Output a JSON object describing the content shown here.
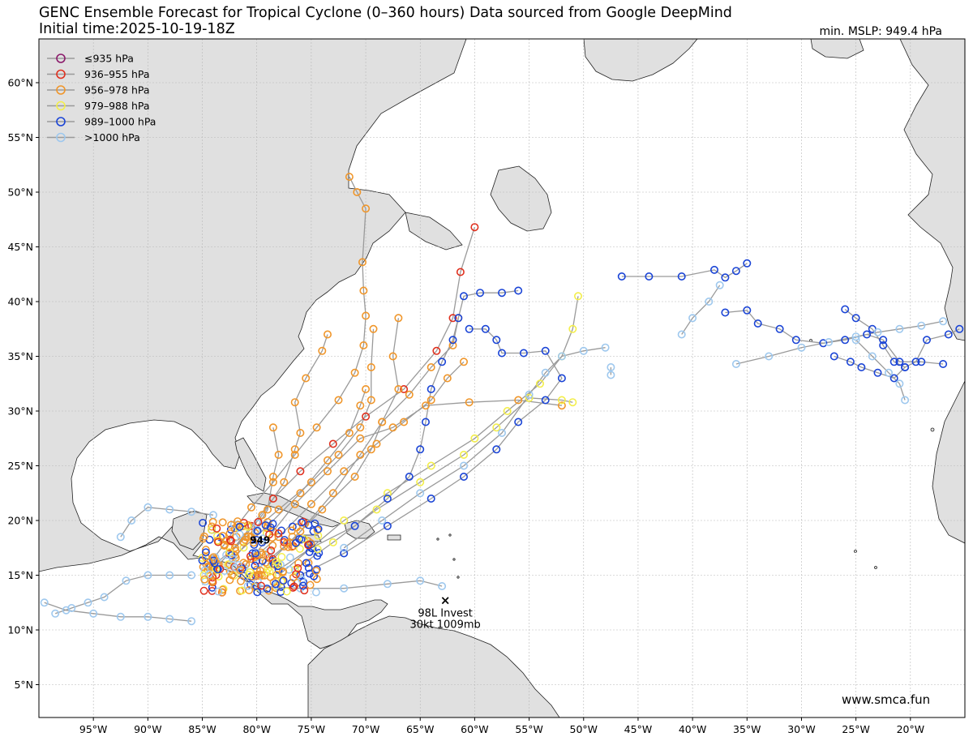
{
  "header": {
    "title": "GENC Ensemble Forecast for Tropical Cyclone (0–360 hours) Data sourced from Google DeepMind",
    "subtitle": "Initial time:2025-10-19-18Z",
    "min_mslp": "min. MSLP: 949.4 hPa"
  },
  "watermark": "www.smca.fun",
  "min_marker_label": "949",
  "invest": {
    "name": "98L Invest",
    "detail": "30kt 1009mb",
    "lon": -62.7,
    "lat": 12.7
  },
  "legend": [
    {
      "label": "≤935 hPa",
      "color": "#8b1a6b"
    },
    {
      "label": "936–955 hPa",
      "color": "#e0301e"
    },
    {
      "label": "956–978 hPa",
      "color": "#f0962a"
    },
    {
      "label": "979–988 hPa",
      "color": "#f3ee4a"
    },
    {
      "label": "989–1000 hPa",
      "color": "#1a44d6"
    },
    {
      "label": ">1000 hPa",
      "color": "#9ec8ee"
    }
  ],
  "chart_data": {
    "type": "scatter",
    "projection": "equirectangular",
    "xlim": [
      -100,
      -15
    ],
    "ylim": [
      2,
      64
    ],
    "x_ticks": [
      "95°W",
      "90°W",
      "85°W",
      "80°W",
      "75°W",
      "70°W",
      "65°W",
      "60°W",
      "55°W",
      "50°W",
      "45°W",
      "40°W",
      "35°W",
      "30°W",
      "25°W",
      "20°W"
    ],
    "x_tick_values": [
      -95,
      -90,
      -85,
      -80,
      -75,
      -70,
      -65,
      -60,
      -55,
      -50,
      -45,
      -40,
      -35,
      -30,
      -25,
      -20
    ],
    "y_ticks": [
      "5°N",
      "10°N",
      "15°N",
      "20°N",
      "25°N",
      "30°N",
      "35°N",
      "40°N",
      "45°N",
      "50°N",
      "55°N",
      "60°N"
    ],
    "y_tick_values": [
      5,
      10,
      15,
      20,
      25,
      30,
      35,
      40,
      45,
      50,
      55,
      60
    ],
    "grid": true,
    "legend_position": "top-left",
    "min_pressure_hpa": 949.4,
    "min_pressure_location": {
      "lon": -79.7,
      "lat": 18.2
    },
    "tracks": [
      {
        "color": "#f0962a",
        "points": [
          [
            -84.0,
            16.5
          ],
          [
            -83.0,
            17.8
          ],
          [
            -82.0,
            19.3
          ],
          [
            -80.5,
            21.2
          ],
          [
            -78.5,
            23.5
          ],
          [
            -76.5,
            26.0
          ],
          [
            -74.5,
            28.5
          ],
          [
            -72.5,
            31.0
          ],
          [
            -71.0,
            33.5
          ],
          [
            -70.2,
            36.0
          ],
          [
            -70.0,
            38.7
          ],
          [
            -70.2,
            41.0
          ],
          [
            -70.3,
            43.6
          ],
          [
            -70.0,
            48.5
          ],
          [
            -70.8,
            50.0
          ],
          [
            -71.5,
            51.4
          ]
        ]
      },
      {
        "color": "#e0301e",
        "points": [
          [
            -82.5,
            17.0
          ],
          [
            -80.5,
            19.5
          ],
          [
            -78.5,
            22.0
          ],
          [
            -76.0,
            24.5
          ],
          [
            -73.0,
            27.0
          ],
          [
            -70.0,
            29.5
          ],
          [
            -66.5,
            32.0
          ],
          [
            -63.5,
            35.5
          ],
          [
            -62.0,
            38.5
          ],
          [
            -61.3,
            42.7
          ],
          [
            -60.0,
            46.8
          ]
        ]
      },
      {
        "color": "#f0962a",
        "points": [
          [
            -83.5,
            16.0
          ],
          [
            -81.0,
            18.5
          ],
          [
            -78.0,
            21.0
          ],
          [
            -75.0,
            23.5
          ],
          [
            -72.5,
            26.0
          ],
          [
            -70.5,
            28.5
          ],
          [
            -69.5,
            31.0
          ],
          [
            -69.5,
            34.0
          ],
          [
            -69.3,
            37.5
          ]
        ]
      },
      {
        "color": "#f0962a",
        "points": [
          [
            -82.0,
            16.8
          ],
          [
            -79.0,
            19.5
          ],
          [
            -76.0,
            22.5
          ],
          [
            -73.5,
            25.5
          ],
          [
            -71.5,
            28.0
          ],
          [
            -70.5,
            30.5
          ],
          [
            -70.0,
            32.0
          ]
        ]
      },
      {
        "color": "#f0962a",
        "points": [
          [
            -81.0,
            16.0
          ],
          [
            -78.0,
            18.5
          ],
          [
            -75.0,
            21.5
          ],
          [
            -72.0,
            24.5
          ],
          [
            -69.0,
            27.0
          ],
          [
            -66.5,
            29.0
          ],
          [
            -64.0,
            31.0
          ],
          [
            -62.5,
            33.0
          ],
          [
            -61.0,
            34.5
          ]
        ]
      },
      {
        "color": "#f0962a",
        "points": [
          [
            -80.0,
            15.5
          ],
          [
            -77.0,
            18.0
          ],
          [
            -74.0,
            21.0
          ],
          [
            -71.0,
            24.0
          ],
          [
            -69.5,
            26.5
          ],
          [
            -68.5,
            29.0
          ],
          [
            -67.0,
            32.0
          ],
          [
            -67.5,
            35.0
          ],
          [
            -67.0,
            38.5
          ]
        ]
      },
      {
        "color": "#f0962a",
        "points": [
          [
            -84.5,
            15.5
          ],
          [
            -82.0,
            17.5
          ],
          [
            -79.5,
            20.5
          ],
          [
            -77.5,
            23.5
          ],
          [
            -76.5,
            26.5
          ],
          [
            -76.0,
            28.0
          ],
          [
            -76.5,
            30.8
          ],
          [
            -75.5,
            33.0
          ],
          [
            -74.0,
            35.5
          ],
          [
            -73.5,
            37.0
          ]
        ]
      },
      {
        "color": "#f0962a",
        "points": [
          [
            -80.5,
            16.5
          ],
          [
            -78.5,
            19.0
          ],
          [
            -76.5,
            21.5
          ],
          [
            -73.5,
            24.5
          ],
          [
            -70.5,
            27.5
          ],
          [
            -67.5,
            28.5
          ],
          [
            -64.5,
            30.5
          ],
          [
            -60.5,
            30.8
          ],
          [
            -56.0,
            31.0
          ],
          [
            -52.0,
            30.5
          ]
        ]
      },
      {
        "color": "#f0962a",
        "points": [
          [
            -79.0,
            16.0
          ],
          [
            -76.0,
            19.0
          ],
          [
            -73.0,
            22.5
          ],
          [
            -70.5,
            26.0
          ],
          [
            -68.5,
            29.0
          ],
          [
            -66.0,
            31.5
          ],
          [
            -64.0,
            34.0
          ],
          [
            -62.0,
            36.0
          ],
          [
            -61.5,
            38.5
          ]
        ]
      },
      {
        "color": "#f0962a",
        "points": [
          [
            -82.5,
            16.0
          ],
          [
            -80.5,
            18.5
          ],
          [
            -79.0,
            21.0
          ],
          [
            -78.5,
            24.0
          ],
          [
            -78.0,
            26.0
          ],
          [
            -78.5,
            28.5
          ]
        ]
      },
      {
        "color": "#f3ee4a",
        "points": [
          [
            -78.0,
            15.0
          ],
          [
            -75.0,
            17.5
          ],
          [
            -72.0,
            20.0
          ],
          [
            -68.0,
            22.5
          ],
          [
            -64.0,
            25.0
          ],
          [
            -60.0,
            27.5
          ],
          [
            -57.0,
            30.0
          ],
          [
            -54.0,
            32.5
          ],
          [
            -52.0,
            35.0
          ],
          [
            -51.0,
            37.5
          ],
          [
            -50.5,
            40.5
          ]
        ]
      },
      {
        "color": "#f3ee4a",
        "points": [
          [
            -76.5,
            15.5
          ],
          [
            -73.0,
            18.0
          ],
          [
            -69.0,
            21.0
          ],
          [
            -65.0,
            23.5
          ],
          [
            -61.0,
            26.0
          ],
          [
            -58.0,
            28.5
          ],
          [
            -55.0,
            31.2
          ],
          [
            -52.0,
            31.0
          ],
          [
            -51.0,
            30.8
          ]
        ]
      },
      {
        "color": "#1a44d6",
        "points": [
          [
            -78.0,
            15.5
          ],
          [
            -75.0,
            17.5
          ],
          [
            -71.0,
            19.5
          ],
          [
            -68.0,
            22.0
          ],
          [
            -66.0,
            24.0
          ],
          [
            -65.0,
            26.5
          ],
          [
            -64.5,
            29.0
          ],
          [
            -64.0,
            32.0
          ],
          [
            -63.0,
            34.5
          ],
          [
            -62.0,
            36.5
          ],
          [
            -61.5,
            38.5
          ],
          [
            -61.0,
            40.5
          ],
          [
            -59.5,
            40.8
          ],
          [
            -57.5,
            40.8
          ],
          [
            -56.0,
            41.0
          ]
        ]
      },
      {
        "color": "#1a44d6",
        "points": [
          [
            -76.0,
            15.0
          ],
          [
            -72.0,
            17.0
          ],
          [
            -68.0,
            19.5
          ],
          [
            -64.0,
            22.0
          ],
          [
            -61.0,
            24.0
          ],
          [
            -58.0,
            26.5
          ],
          [
            -56.0,
            29.0
          ],
          [
            -53.5,
            31.0
          ],
          [
            -52.0,
            33.0
          ],
          [
            -53.5,
            35.5
          ],
          [
            -55.5,
            35.3
          ],
          [
            -57.5,
            35.3
          ],
          [
            -58.0,
            36.5
          ],
          [
            -59.0,
            37.5
          ],
          [
            -60.5,
            37.5
          ]
        ]
      },
      {
        "color": "#1a44d6",
        "points": [
          [
            -46.5,
            42.3
          ],
          [
            -44.0,
            42.3
          ],
          [
            -41.0,
            42.3
          ],
          [
            -38.0,
            42.9
          ],
          [
            -37.0,
            42.2
          ],
          [
            -36.0,
            42.8
          ],
          [
            -35.0,
            43.5
          ]
        ]
      },
      {
        "color": "#1a44d6",
        "points": [
          [
            -37.0,
            39.0
          ],
          [
            -35.0,
            39.2
          ],
          [
            -34.0,
            38.0
          ],
          [
            -32.0,
            37.5
          ],
          [
            -30.5,
            36.5
          ],
          [
            -28.0,
            36.2
          ],
          [
            -26.0,
            36.5
          ],
          [
            -24.0,
            37.0
          ],
          [
            -22.5,
            36.5
          ],
          [
            -21.0,
            34.5
          ],
          [
            -19.0,
            34.5
          ],
          [
            -17.0,
            34.3
          ]
        ]
      },
      {
        "color": "#1a44d6",
        "points": [
          [
            -26.0,
            39.3
          ],
          [
            -25.0,
            38.5
          ],
          [
            -23.5,
            37.5
          ],
          [
            -22.5,
            36.0
          ],
          [
            -21.5,
            34.5
          ],
          [
            -20.5,
            34.0
          ],
          [
            -19.5,
            34.5
          ],
          [
            -18.5,
            36.5
          ],
          [
            -16.5,
            37.0
          ],
          [
            -15.5,
            37.5
          ]
        ]
      },
      {
        "color": "#1a44d6",
        "points": [
          [
            -27.0,
            35.0
          ],
          [
            -25.5,
            34.5
          ],
          [
            -24.5,
            34.0
          ],
          [
            -23.0,
            33.5
          ],
          [
            -21.5,
            33.0
          ],
          [
            -20.5,
            34.0
          ]
        ]
      },
      {
        "color": "#9ec8ee",
        "points": [
          [
            -80.0,
            14.0
          ],
          [
            -76.0,
            13.8
          ],
          [
            -72.0,
            13.8
          ],
          [
            -68.0,
            14.2
          ],
          [
            -65.0,
            14.5
          ],
          [
            -63.0,
            14.0
          ]
        ]
      },
      {
        "color": "#9ec8ee",
        "points": [
          [
            -86.0,
            15.0
          ],
          [
            -88.0,
            15.0
          ],
          [
            -90.0,
            15.0
          ],
          [
            -92.0,
            14.5
          ],
          [
            -94.0,
            13.0
          ],
          [
            -95.5,
            12.5
          ],
          [
            -97.0,
            12.0
          ],
          [
            -98.5,
            11.5
          ]
        ]
      },
      {
        "color": "#9ec8ee",
        "points": [
          [
            -84.0,
            20.5
          ],
          [
            -86.0,
            20.8
          ],
          [
            -88.0,
            21.0
          ],
          [
            -90.0,
            21.2
          ],
          [
            -91.5,
            20.0
          ],
          [
            -92.5,
            18.5
          ]
        ]
      },
      {
        "color": "#9ec8ee",
        "points": [
          [
            -99.5,
            12.5
          ],
          [
            -97.5,
            11.8
          ],
          [
            -95.0,
            11.5
          ],
          [
            -92.5,
            11.2
          ],
          [
            -90.0,
            11.2
          ],
          [
            -88.0,
            11.0
          ],
          [
            -86.0,
            10.8
          ]
        ]
      },
      {
        "color": "#9ec8ee",
        "points": [
          [
            -72.0,
            17.5
          ],
          [
            -68.5,
            20.0
          ],
          [
            -65.0,
            22.5
          ],
          [
            -61.0,
            25.0
          ],
          [
            -57.5,
            28.0
          ],
          [
            -55.0,
            31.5
          ],
          [
            -53.5,
            33.5
          ],
          [
            -52.0,
            35.0
          ],
          [
            -50.0,
            35.5
          ],
          [
            -48.0,
            35.8
          ]
        ]
      },
      {
        "color": "#9ec8ee",
        "points": [
          [
            -36.0,
            34.3
          ],
          [
            -33.0,
            35.0
          ],
          [
            -30.0,
            35.8
          ],
          [
            -27.5,
            36.3
          ],
          [
            -25.0,
            36.8
          ],
          [
            -23.0,
            37.2
          ],
          [
            -21.0,
            37.5
          ],
          [
            -19.0,
            37.8
          ],
          [
            -17.0,
            38.2
          ]
        ]
      },
      {
        "color": "#9ec8ee",
        "points": [
          [
            -41.0,
            37.0
          ],
          [
            -40.0,
            38.5
          ],
          [
            -38.5,
            40.0
          ],
          [
            -37.5,
            41.5
          ]
        ]
      },
      {
        "color": "#9ec8ee",
        "points": [
          [
            -25.0,
            36.5
          ],
          [
            -23.5,
            35.0
          ],
          [
            -22.0,
            33.5
          ],
          [
            -21.0,
            32.5
          ],
          [
            -20.5,
            31.0
          ]
        ]
      },
      {
        "color": "#9ec8ee",
        "points": [
          [
            -47.5,
            33.3
          ],
          [
            -47.5,
            34.0
          ]
        ]
      }
    ],
    "cluster": {
      "center": {
        "lon": -79.5,
        "lat": 17.0
      },
      "colors": [
        "#f0962a",
        "#e0301e",
        "#f3ee4a",
        "#1a44d6",
        "#9ec8ee",
        "#f0962a",
        "#1a44d6",
        "#f0962a"
      ]
    }
  }
}
